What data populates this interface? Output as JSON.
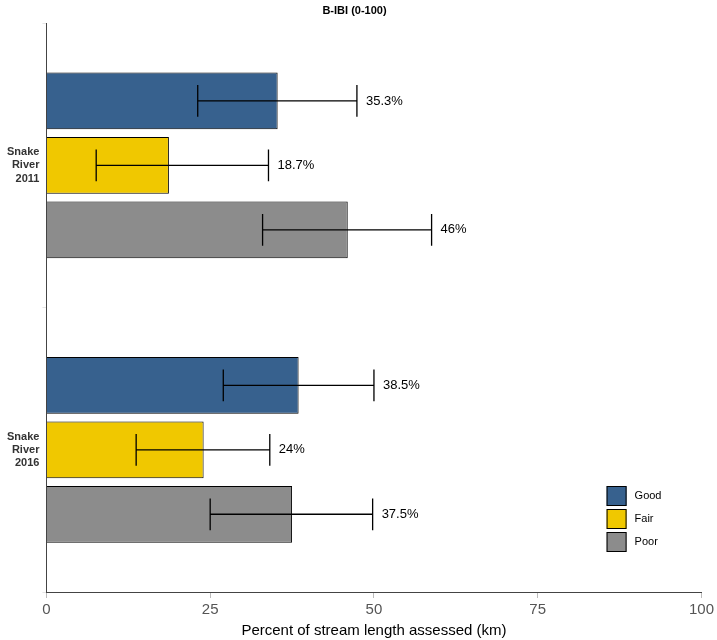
{
  "chart_data": {
    "type": "bar",
    "orientation": "horizontal",
    "title": "B-IBI (0-100)",
    "x_label": "Percent of stream length assessed (km)",
    "categories": [
      "Snake River 2011",
      "Snake River 2016"
    ],
    "series": [
      {
        "name": "Good",
        "color": "#37618e",
        "values": [
          35.3,
          38.5
        ],
        "value_labels": [
          "35.3%",
          "38.5%"
        ],
        "error_low": [
          23.1,
          27.0
        ],
        "error_high": [
          47.4,
          50.0
        ]
      },
      {
        "name": "Fair",
        "color": "#f0c800",
        "values": [
          18.7,
          24
        ],
        "value_labels": [
          "18.7%",
          "24%"
        ],
        "error_low": [
          7.6,
          13.7
        ],
        "error_high": [
          33.9,
          34.1
        ]
      },
      {
        "name": "Poor",
        "color": "#8c8c8c",
        "values": [
          46,
          37.5
        ],
        "value_labels": [
          "46%",
          "37.5%"
        ],
        "error_low": [
          33.0,
          25.0
        ],
        "error_high": [
          58.8,
          49.8
        ]
      }
    ],
    "xlim": [
      0,
      100
    ],
    "xticks": [
      0,
      25,
      50,
      75,
      100
    ],
    "grid": false,
    "legend": "lower right",
    "data_labels": true
  }
}
